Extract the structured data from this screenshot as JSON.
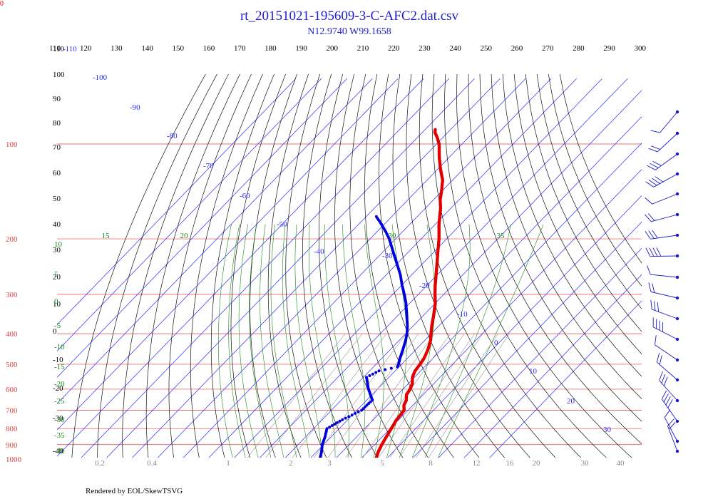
{
  "corner_label": "0",
  "footer": "Rendered by EOL/SkewTSVG",
  "chart_data": {
    "type": "skew-t",
    "title": "rt_20151021-195609-3-C-AFC2.dat.csv",
    "subtitle": "N12.9740 W99.1658",
    "top_axis_ticks": [
      "110",
      "120",
      "130",
      "140",
      "150",
      "160",
      "170",
      "180",
      "190",
      "200",
      "210",
      "220",
      "230",
      "240",
      "250",
      "260",
      "270",
      "280",
      "290",
      "300"
    ],
    "pressure_levels": [
      100,
      200,
      300,
      400,
      500,
      600,
      700,
      800,
      900,
      1000
    ],
    "pressure_labels": [
      "100",
      "200",
      "300",
      "400",
      "500",
      "600",
      "700",
      "800",
      "900",
      "1000"
    ],
    "isotherm_labels": [
      "-110",
      "-100",
      "-90",
      "-80",
      "-70",
      "-60",
      "-50",
      "-40",
      "-30",
      "-20",
      "-10",
      "0",
      "10",
      "20",
      "30"
    ],
    "left_labels": [
      "110",
      "100",
      "90",
      "80",
      "70",
      "60",
      "50",
      "40",
      "30",
      "20",
      "10",
      "0",
      "-10",
      "-20",
      "-30",
      "-40"
    ],
    "mixing_ratio_labels": [
      "0.2",
      "0.4",
      "1",
      "2",
      "3",
      "5",
      "8",
      "12",
      "16",
      "20",
      "30",
      "40"
    ],
    "moist_adiabat_labels": [
      "15",
      "20",
      "30",
      "35"
    ],
    "moist_left_labels": [
      "10",
      "5",
      "0",
      "-5",
      "-10",
      "-15",
      "-20",
      "-25",
      "-30",
      "-35",
      "-40"
    ],
    "colors": {
      "temperature": "#e00000",
      "dewpoint": "#0000dd",
      "isobar": "#e04040",
      "isotherm": "#2a2aff",
      "dry_adiabat": "#111111",
      "moist_adiabat": "#1a8a1a",
      "mixing_ratio": "#999999"
    },
    "temperature_series": [
      [
        1000,
        16
      ],
      [
        950,
        14.2
      ],
      [
        900,
        12.8
      ],
      [
        850,
        11.6
      ],
      [
        800,
        10.4
      ],
      [
        750,
        9.1
      ],
      [
        700,
        8.5
      ],
      [
        675,
        6.5
      ],
      [
        650,
        5.5
      ],
      [
        625,
        3.5
      ],
      [
        600,
        2.8
      ],
      [
        575,
        1.5
      ],
      [
        550,
        -0.8
      ],
      [
        525,
        -2.2
      ],
      [
        500,
        -2.8
      ],
      [
        480,
        -3.4
      ],
      [
        450,
        -5.2
      ],
      [
        420,
        -7.7
      ],
      [
        400,
        -10.1
      ],
      [
        380,
        -12.5
      ],
      [
        350,
        -16.0
      ],
      [
        320,
        -20.0
      ],
      [
        300,
        -23.5
      ],
      [
        280,
        -27.0
      ],
      [
        260,
        -30.5
      ],
      [
        240,
        -34.3
      ],
      [
        220,
        -38.5
      ],
      [
        200,
        -43.0
      ],
      [
        180,
        -48.5
      ],
      [
        160,
        -54.0
      ],
      [
        150,
        -57.5
      ],
      [
        140,
        -60.5
      ],
      [
        130,
        -64.0
      ],
      [
        120,
        -69.0
      ],
      [
        110,
        -74.0
      ],
      [
        100,
        -79.0
      ],
      [
        95,
        -82.5
      ],
      [
        92,
        -85.0
      ],
      [
        90,
        -86.0
      ]
    ],
    "dewpoint_series": [
      [
        1000,
        -6
      ],
      [
        950,
        -8
      ],
      [
        900,
        -10.5
      ],
      [
        850,
        -12.4
      ],
      [
        800,
        -14.8
      ],
      [
        750,
        -12.1
      ],
      [
        700,
        -8.2
      ],
      [
        650,
        -7.8
      ],
      [
        600,
        -13.5
      ],
      [
        550,
        -18.8
      ],
      [
        525,
        -16.3
      ],
      [
        510,
        -10.6
      ],
      [
        500,
        -11.2
      ],
      [
        480,
        -12.8
      ],
      [
        450,
        -15.0
      ],
      [
        420,
        -17.5
      ],
      [
        400,
        -19.5
      ],
      [
        380,
        -22.0
      ],
      [
        350,
        -26.5
      ],
      [
        320,
        -31.5
      ],
      [
        300,
        -35.5
      ],
      [
        280,
        -40.0
      ],
      [
        260,
        -44.5
      ],
      [
        240,
        -50.0
      ],
      [
        220,
        -56.0
      ],
      [
        200,
        -62.5
      ],
      [
        190,
        -66.5
      ],
      [
        180,
        -71.0
      ],
      [
        170,
        -76.0
      ]
    ]
  }
}
